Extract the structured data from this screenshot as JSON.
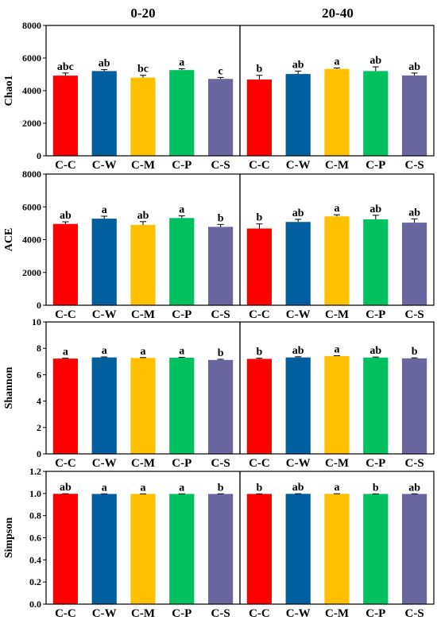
{
  "chart_data": {
    "type": "bar",
    "column_titles": [
      "0-20",
      "20-40"
    ],
    "categories": [
      "C-C",
      "C-W",
      "C-M",
      "C-P",
      "C-S"
    ],
    "bar_colors": {
      "C-C": "#ff0000",
      "C-W": "#005f9e",
      "C-M": "#ffc000",
      "C-P": "#00c060",
      "C-S": "#6a67a0"
    },
    "grid": false,
    "panels": [
      {
        "ylabel": "Chao1",
        "ylim": [
          0,
          8000
        ],
        "yticks": [
          0,
          2000,
          4000,
          6000,
          8000
        ],
        "columns": [
          {
            "values": [
              4920,
              5200,
              4800,
              5260,
              4720
            ],
            "errors": [
              160,
              90,
              140,
              80,
              90
            ],
            "letters": [
              "abc",
              "ab",
              "bc",
              "a",
              "c"
            ]
          },
          {
            "values": [
              4680,
              5020,
              5330,
              5200,
              4930
            ],
            "errors": [
              260,
              180,
              60,
              260,
              150
            ],
            "letters": [
              "b",
              "ab",
              "a",
              "ab",
              "ab"
            ]
          }
        ]
      },
      {
        "ylabel": "ACE",
        "ylim": [
          0,
          8000
        ],
        "yticks": [
          0,
          2000,
          4000,
          6000,
          8000
        ],
        "columns": [
          {
            "values": [
              4960,
              5280,
              4900,
              5320,
              4780
            ],
            "errors": [
              130,
              150,
              200,
              130,
              150
            ],
            "letters": [
              "ab",
              "a",
              "ab",
              "a",
              "b"
            ]
          },
          {
            "values": [
              4680,
              5080,
              5420,
              5240,
              5040
            ],
            "errors": [
              280,
              160,
              100,
              250,
              230
            ],
            "letters": [
              "b",
              "ab",
              "a",
              "ab",
              "ab"
            ]
          }
        ]
      },
      {
        "ylabel": "Shannon",
        "ylim": [
          0,
          10
        ],
        "yticks": [
          0,
          2,
          4,
          6,
          8,
          10
        ],
        "columns": [
          {
            "values": [
              7.22,
              7.31,
              7.27,
              7.29,
              7.12
            ],
            "errors": [
              0.04,
              0.04,
              0.03,
              0.03,
              0.05
            ],
            "letters": [
              "a",
              "a",
              "a",
              "a",
              "b"
            ]
          },
          {
            "values": [
              7.2,
              7.31,
              7.41,
              7.3,
              7.24
            ],
            "errors": [
              0.05,
              0.05,
              0.03,
              0.04,
              0.04
            ],
            "letters": [
              "b",
              "ab",
              "a",
              "ab",
              "b"
            ]
          }
        ]
      },
      {
        "ylabel": "Simpson",
        "ylim": [
          0,
          1.2
        ],
        "yticks": [
          0.0,
          0.2,
          0.4,
          0.6,
          0.8,
          1.0,
          1.2
        ],
        "ytick_labels": [
          "0.0",
          "0.2",
          "0.4",
          "0.6",
          "0.8",
          "1.0",
          "1.2"
        ],
        "columns": [
          {
            "values": [
              0.997,
              0.996,
              0.996,
              0.996,
              0.996
            ],
            "errors": [
              0.001,
              0.001,
              0.001,
              0.001,
              0.001
            ],
            "letters": [
              "ab",
              "a",
              "a",
              "a",
              "b"
            ]
          },
          {
            "values": [
              0.996,
              0.997,
              0.997,
              0.996,
              0.996
            ],
            "errors": [
              0.001,
              0.001,
              0.001,
              0.001,
              0.001
            ],
            "letters": [
              "b",
              "ab",
              "a",
              "b",
              "ab"
            ]
          }
        ]
      }
    ]
  }
}
